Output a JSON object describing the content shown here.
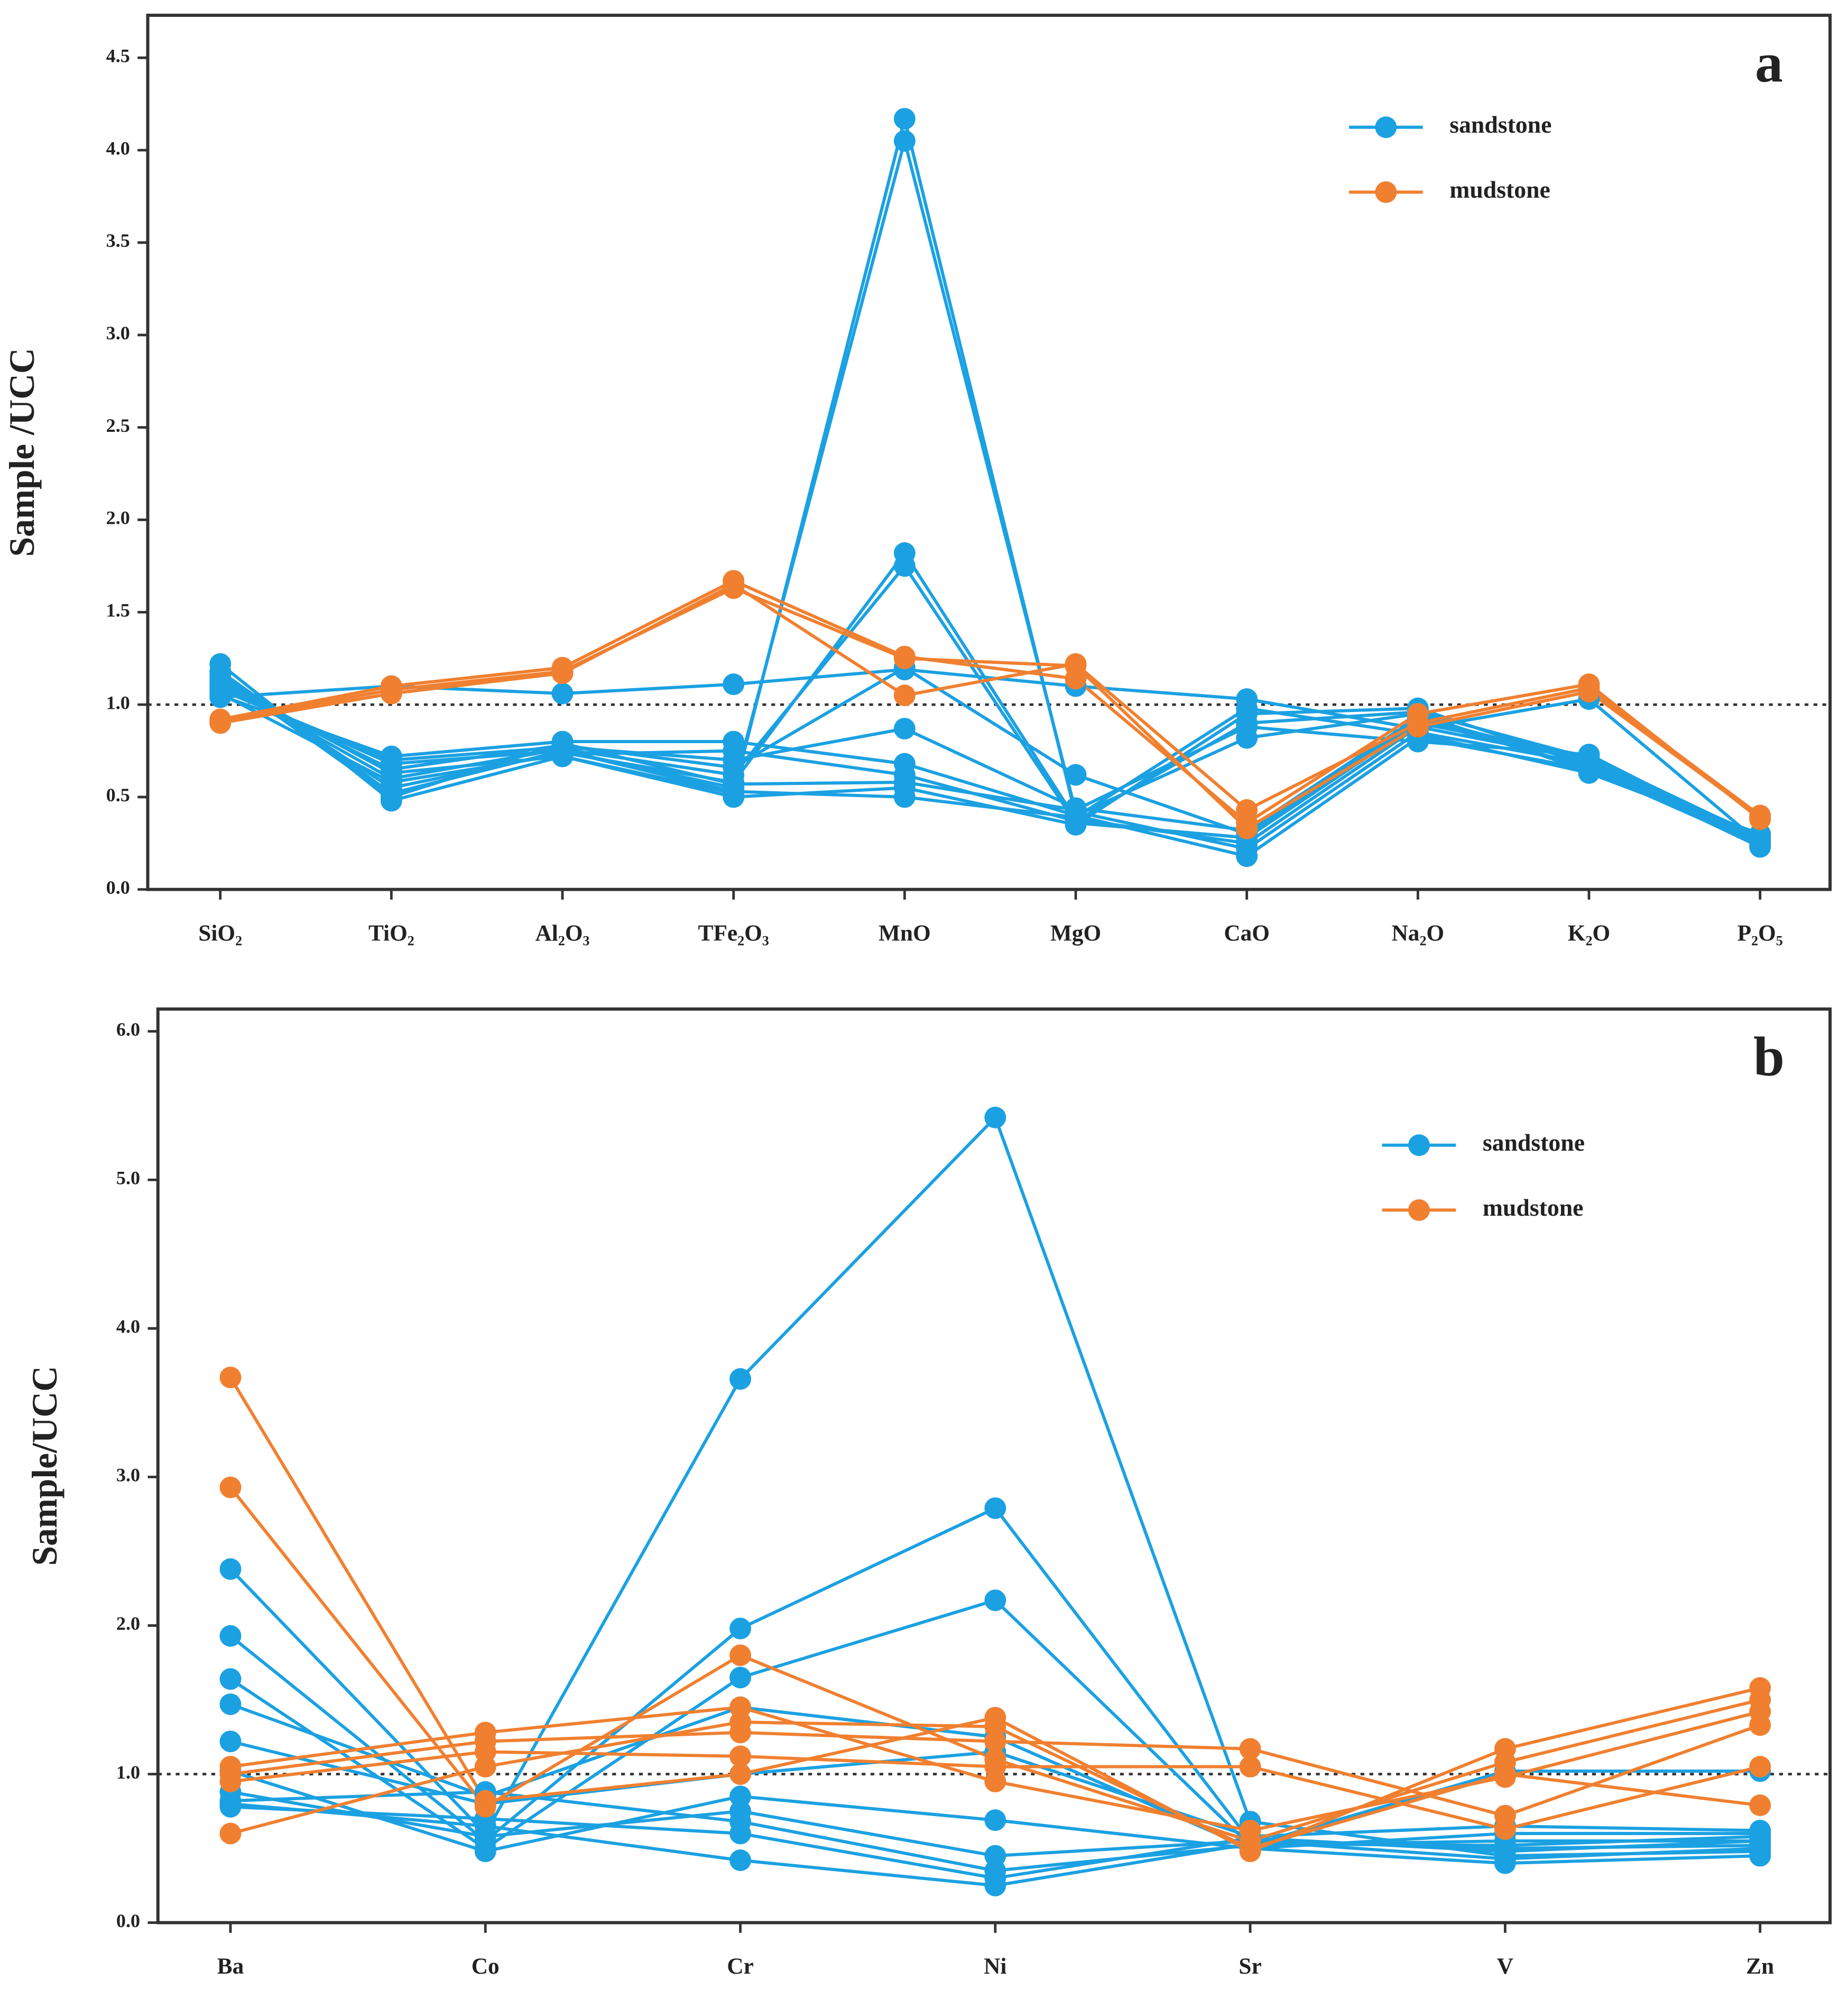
{
  "chart_data": [
    {
      "type": "line",
      "annotation": "a",
      "y_label": "Sample /UCC",
      "categories": [
        "SiO₂",
        "TiO₂",
        "Al₂O₃",
        "TFe₂O₃",
        "MnO",
        "MgO",
        "CaO",
        "Na₂O",
        "K₂O",
        "P₂O₅"
      ],
      "ylim": [
        0,
        4.73
      ],
      "yticks": [
        {
          "value": 0,
          "label": "0.0"
        },
        {
          "value": 0.5,
          "label": "0.5"
        },
        {
          "value": 1,
          "label": "1.0"
        },
        {
          "value": 1.5,
          "label": "1.5"
        },
        {
          "value": 2,
          "label": "2.0"
        },
        {
          "value": 2.5,
          "label": "2.5"
        },
        {
          "value": 3,
          "label": "3.0"
        },
        {
          "value": 3.5,
          "label": "3.5"
        },
        {
          "value": 4,
          "label": "4.0"
        },
        {
          "value": 4.5,
          "label": "4.5"
        }
      ],
      "refline": 1,
      "legend": "top right",
      "series": [
        {
          "name": "sandstone",
          "color": "#1ba1e2",
          "values": [
            [
              1.22,
              0.48,
              0.72,
              0.52,
              4.17,
              0.4,
              0.18,
              0.82,
              0.65,
              0.24
            ],
            [
              1.18,
              0.52,
              0.75,
              0.55,
              4.05,
              0.42,
              0.22,
              0.85,
              0.68,
              0.26
            ],
            [
              1.15,
              0.55,
              0.74,
              0.58,
              1.82,
              0.38,
              0.25,
              0.88,
              0.7,
              0.27
            ],
            [
              1.12,
              0.6,
              0.76,
              0.62,
              1.75,
              0.36,
              0.28,
              0.9,
              0.72,
              0.28
            ],
            [
              1.1,
              0.65,
              0.78,
              0.66,
              1.2,
              0.62,
              0.3,
              0.92,
              0.66,
              0.25
            ],
            [
              1.08,
              0.7,
              0.77,
              0.7,
              0.87,
              0.44,
              0.32,
              0.93,
              0.69,
              0.29
            ],
            [
              1.05,
              0.72,
              0.8,
              0.8,
              0.68,
              0.4,
              0.82,
              0.95,
              0.64,
              0.3
            ],
            [
              1.06,
              0.58,
              0.73,
              0.75,
              0.62,
              0.37,
              0.9,
              0.96,
              0.71,
              0.27
            ],
            [
              1.04,
              1.1,
              1.06,
              1.11,
              1.19,
              1.1,
              1.03,
              0.87,
              1.03,
              0.25
            ],
            [
              1.13,
              0.63,
              0.72,
              0.5,
              0.55,
              0.35,
              0.95,
              0.98,
              0.67,
              0.23
            ],
            [
              1.09,
              0.68,
              0.75,
              0.53,
              0.5,
              0.39,
              0.98,
              0.84,
              0.63,
              0.28
            ],
            [
              1.16,
              0.5,
              0.79,
              0.57,
              0.58,
              0.43,
              0.88,
              0.8,
              0.73,
              0.26
            ]
          ]
        },
        {
          "name": "mudstone",
          "color": "#f08030",
          "values": [
            [
              0.9,
              1.06,
              1.17,
              1.65,
              1.05,
              1.22,
              0.43,
              0.9,
              1.09,
              0.4
            ],
            [
              0.92,
              1.1,
              1.2,
              1.67,
              1.26,
              1.14,
              0.36,
              0.95,
              1.11,
              0.38
            ],
            [
              0.91,
              1.08,
              1.18,
              1.63,
              1.25,
              1.21,
              0.33,
              0.88,
              1.07,
              0.39
            ]
          ]
        }
      ]
    },
    {
      "type": "line",
      "annotation": "b",
      "y_label": "Sample/UCC",
      "categories": [
        "Ba",
        "Co",
        "Cr",
        "Ni",
        "Sr",
        "V",
        "Zn"
      ],
      "ylim": [
        0,
        6.15
      ],
      "yticks": [
        {
          "value": 0,
          "label": "0.0"
        },
        {
          "value": 1,
          "label": "1.0"
        },
        {
          "value": 2,
          "label": "2.0"
        },
        {
          "value": 3,
          "label": "3.0"
        },
        {
          "value": 4,
          "label": "4.0"
        },
        {
          "value": 5,
          "label": "5.0"
        },
        {
          "value": 6,
          "label": "6.0"
        }
      ],
      "refline": 1,
      "legend": "top right",
      "series": [
        {
          "name": "sandstone",
          "color": "#1ba1e2",
          "values": [
            [
              2.38,
              0.6,
              3.66,
              5.42,
              0.68,
              0.45,
              0.48
            ],
            [
              1.93,
              0.55,
              1.98,
              2.79,
              0.55,
              0.5,
              0.52
            ],
            [
              1.64,
              0.5,
              1.65,
              2.17,
              0.52,
              0.55,
              0.55
            ],
            [
              1.47,
              0.85,
              1.45,
              1.25,
              0.5,
              0.6,
              0.6
            ],
            [
              1.22,
              0.8,
              1.0,
              1.15,
              0.58,
              0.65,
              0.62
            ],
            [
              1.02,
              0.48,
              0.85,
              0.69,
              0.5,
              0.4,
              0.45
            ],
            [
              0.88,
              0.58,
              0.75,
              0.45,
              0.55,
              0.43,
              0.5
            ],
            [
              0.82,
              0.88,
              0.68,
              0.35,
              0.52,
              1.02,
              1.02
            ],
            [
              0.78,
              0.7,
              0.6,
              0.3,
              0.57,
              0.48,
              0.55
            ],
            [
              0.8,
              0.65,
              0.42,
              0.25,
              0.53,
              0.52,
              0.58
            ]
          ]
        },
        {
          "name": "mudstone",
          "color": "#f08030",
          "values": [
            [
              3.67,
              0.82,
              1.0,
              1.38,
              0.48,
              1.17,
              1.58
            ],
            [
              2.93,
              0.78,
              1.8,
              1.1,
              0.55,
              1.08,
              1.5
            ],
            [
              1.05,
              1.28,
              1.45,
              0.95,
              0.62,
              0.98,
              1.42
            ],
            [
              1.0,
              1.22,
              1.28,
              1.22,
              1.17,
              0.72,
              1.33
            ],
            [
              0.95,
              1.15,
              1.12,
              1.05,
              1.05,
              0.63,
              1.05
            ],
            [
              0.6,
              1.05,
              1.35,
              1.32,
              0.5,
              1.0,
              0.79
            ]
          ]
        }
      ]
    }
  ]
}
